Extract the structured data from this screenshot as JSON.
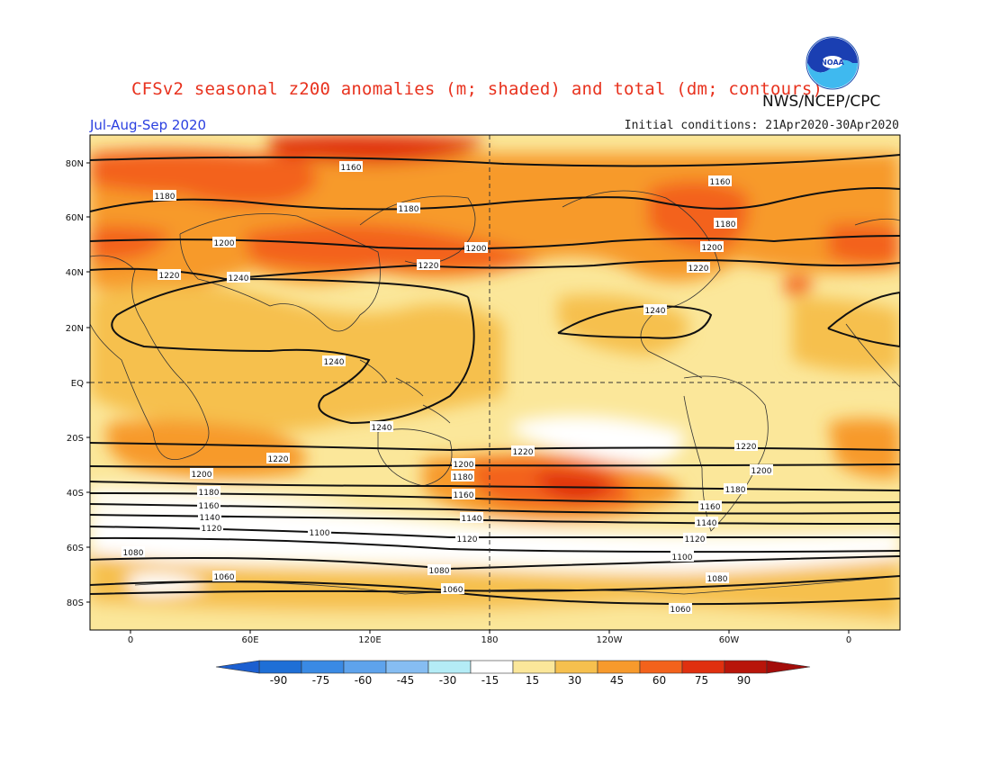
{
  "header": {
    "title": "CFSv2 seasonal z200 anomalies (m; shaded) and total (dm; contours)",
    "org": "NWS/NCEP/CPC",
    "season": "Jul-Aug-Sep 2020",
    "initial_conditions": "Initial conditions: 21Apr2020-30Apr2020",
    "logo_text": "NOAA"
  },
  "map": {
    "projection": "cylindrical equidistant",
    "lon_ticks": [
      "0",
      "60E",
      "120E",
      "180",
      "120W",
      "60W",
      "0"
    ],
    "lat_ticks": [
      "80N",
      "60N",
      "40N",
      "20N",
      "EQ",
      "20S",
      "40S",
      "60S",
      "80S"
    ],
    "contour_labels": [
      {
        "text": "1160"
      },
      {
        "text": "1180"
      },
      {
        "text": "1180"
      },
      {
        "text": "1160"
      },
      {
        "text": "1180"
      },
      {
        "text": "1200"
      },
      {
        "text": "1200"
      },
      {
        "text": "1200"
      },
      {
        "text": "1220"
      },
      {
        "text": "1220"
      },
      {
        "text": "1220"
      },
      {
        "text": "1240"
      },
      {
        "text": "1240"
      },
      {
        "text": "1240"
      },
      {
        "text": "1240"
      },
      {
        "text": "1220"
      },
      {
        "text": "1220"
      },
      {
        "text": "1220"
      },
      {
        "text": "1200"
      },
      {
        "text": "1200"
      },
      {
        "text": "1200"
      },
      {
        "text": "1180"
      },
      {
        "text": "1180"
      },
      {
        "text": "1180"
      },
      {
        "text": "1160"
      },
      {
        "text": "1160"
      },
      {
        "text": "1160"
      },
      {
        "text": "1140"
      },
      {
        "text": "1140"
      },
      {
        "text": "1140"
      },
      {
        "text": "1120"
      },
      {
        "text": "1120"
      },
      {
        "text": "1120"
      },
      {
        "text": "1100"
      },
      {
        "text": "1100"
      },
      {
        "text": "1080"
      },
      {
        "text": "1080"
      },
      {
        "text": "1080"
      },
      {
        "text": "1060"
      },
      {
        "text": "1060"
      },
      {
        "text": "1060"
      }
    ]
  },
  "colorbar": {
    "labels": [
      "-90",
      "-75",
      "-60",
      "-45",
      "-30",
      "-15",
      "15",
      "30",
      "45",
      "60",
      "75",
      "90"
    ],
    "colors": [
      "#1e6fd6",
      "#3a8ae4",
      "#5ea3ec",
      "#86bdf2",
      "#b4ecf6",
      "#ffffff",
      "#fbe79a",
      "#f6c04e",
      "#f79a2c",
      "#f3621c",
      "#e0300f",
      "#b8150a"
    ],
    "low_end_color": "#1c5fd0",
    "high_end_color": "#a30d0a"
  }
}
